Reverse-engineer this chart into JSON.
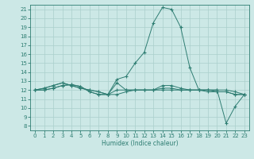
{
  "xlabel": "Humidex (Indice chaleur)",
  "xlim": [
    -0.5,
    23.5
  ],
  "ylim": [
    7.5,
    21.5
  ],
  "xticks": [
    0,
    1,
    2,
    3,
    4,
    5,
    6,
    7,
    8,
    9,
    10,
    11,
    12,
    13,
    14,
    15,
    16,
    17,
    18,
    19,
    20,
    21,
    22,
    23
  ],
  "yticks": [
    8,
    9,
    10,
    11,
    12,
    13,
    14,
    15,
    16,
    17,
    18,
    19,
    20,
    21
  ],
  "bg_color": "#cce8e6",
  "line_color": "#2e7d72",
  "grid_color": "#aacfcc",
  "series": [
    [
      12,
      12,
      12.2,
      12.5,
      12.6,
      12.4,
      11.8,
      11.5,
      11.5,
      13.2,
      13.5,
      15.0,
      16.2,
      19.5,
      21.2,
      21.0,
      19.0,
      14.5,
      12.0,
      12.0,
      12.0,
      8.3,
      10.2,
      11.5
    ],
    [
      12,
      12,
      12.2,
      12.5,
      12.6,
      12.4,
      11.8,
      11.5,
      11.5,
      12.0,
      12.0,
      12.0,
      12.0,
      12.0,
      12.0,
      12.0,
      12.0,
      12.0,
      12.0,
      12.0,
      12.0,
      12.0,
      11.8,
      11.5
    ],
    [
      12,
      12.2,
      12.5,
      12.8,
      12.5,
      12.2,
      12.0,
      11.8,
      11.5,
      12.8,
      12.0,
      12.0,
      12.0,
      12.0,
      12.5,
      12.5,
      12.2,
      12.0,
      12.0,
      12.0,
      11.8,
      11.8,
      11.5,
      11.5
    ],
    [
      12,
      12.2,
      12.5,
      12.8,
      12.5,
      12.2,
      12.0,
      11.8,
      11.5,
      11.5,
      11.8,
      12.0,
      12.0,
      12.0,
      12.2,
      12.2,
      12.0,
      12.0,
      12.0,
      11.8,
      11.8,
      11.8,
      11.5,
      11.5
    ]
  ]
}
